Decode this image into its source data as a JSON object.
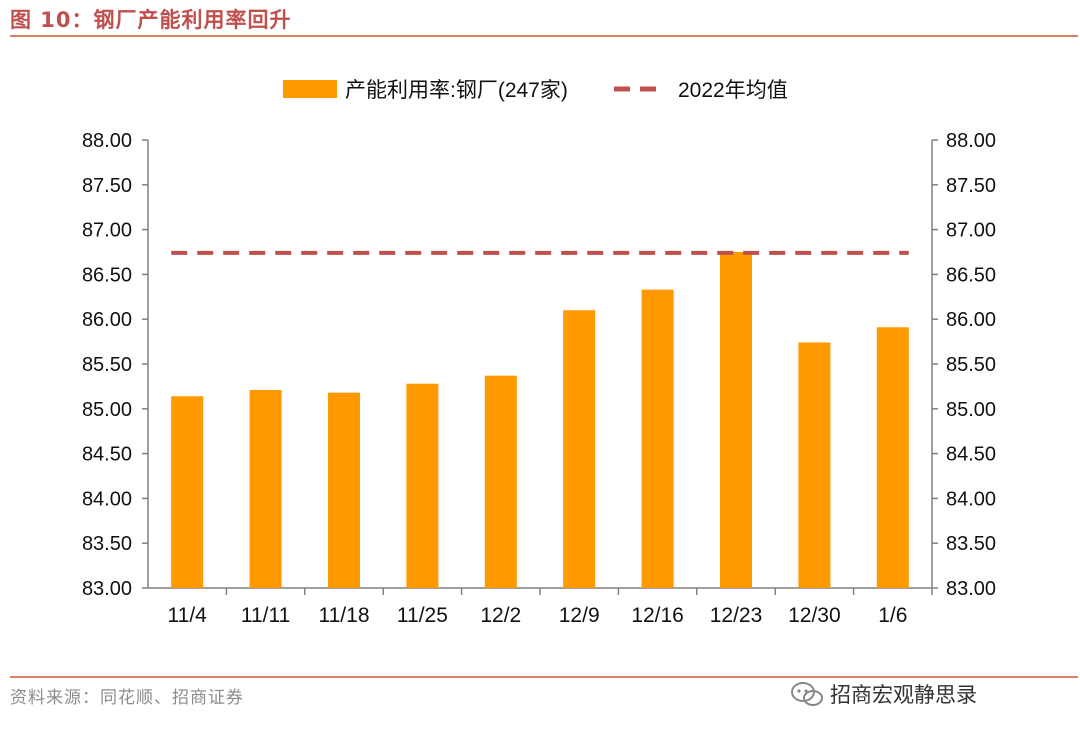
{
  "figure": {
    "title": "图 10：钢厂产能利用率回升",
    "source": "资料来源：同花顺、招商证券",
    "watermark": "招商宏观静思录"
  },
  "colors": {
    "bar": "#ff9900",
    "avg_line": "#c0504d",
    "accent": "#c0504d",
    "axis": "#808080"
  },
  "chart_data": {
    "type": "bar",
    "categories": [
      "11/4",
      "11/11",
      "11/18",
      "11/25",
      "12/2",
      "12/9",
      "12/16",
      "12/23",
      "12/30",
      "1/6"
    ],
    "series": [
      {
        "name": "产能利用率:钢厂(247家)",
        "kind": "bar",
        "values": [
          85.14,
          85.21,
          85.18,
          85.28,
          85.37,
          86.1,
          86.33,
          86.75,
          85.74,
          85.91
        ]
      },
      {
        "name": "2022年均值",
        "kind": "dashed-line",
        "value": 86.74
      }
    ],
    "ylim": [
      83.0,
      88.0
    ],
    "yticks": [
      "83.00",
      "83.50",
      "84.00",
      "84.50",
      "85.00",
      "85.50",
      "86.00",
      "86.50",
      "87.00",
      "87.50",
      "88.00"
    ],
    "y2ticks": [
      "83.00",
      "83.50",
      "84.00",
      "84.50",
      "85.00",
      "85.50",
      "86.00",
      "86.50",
      "87.00",
      "87.50",
      "88.00"
    ],
    "legend_position": "top-center"
  }
}
